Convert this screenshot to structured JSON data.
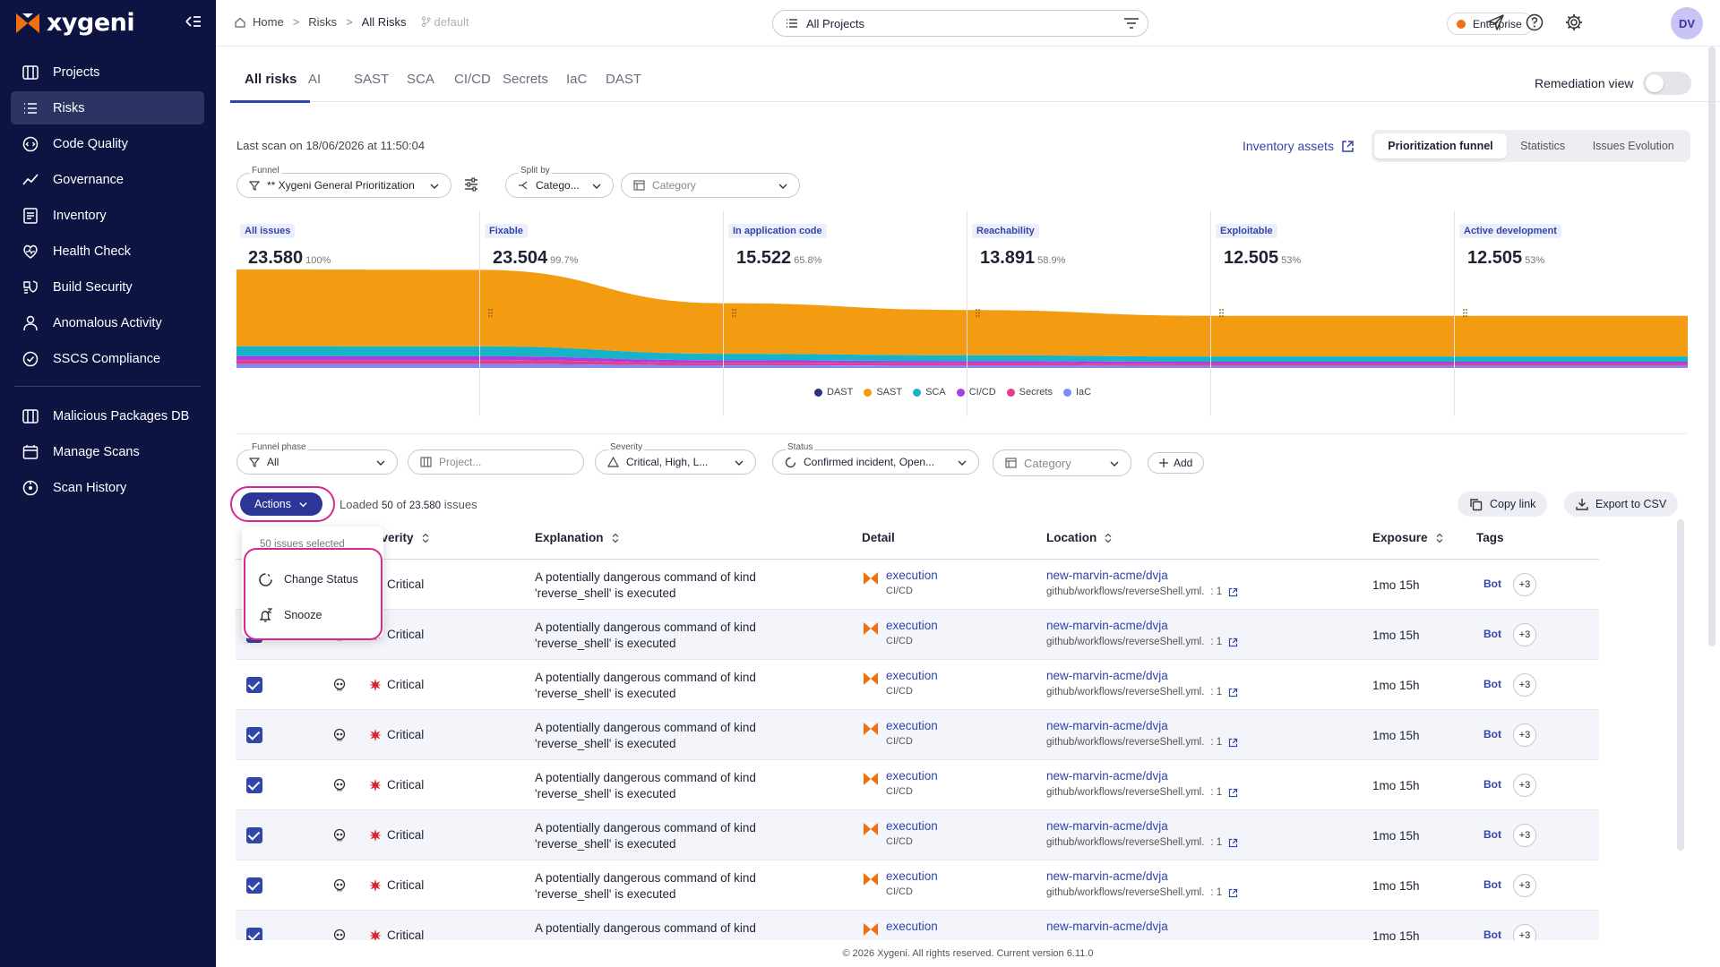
{
  "brand": {
    "name": "xygeni"
  },
  "nav": [
    {
      "label": "Projects",
      "icon": "projects-icon",
      "active": false
    },
    {
      "label": "Risks",
      "icon": "risks-icon",
      "active": true
    },
    {
      "label": "Code Quality",
      "icon": "code-quality-icon",
      "active": false
    },
    {
      "label": "Governance",
      "icon": "governance-icon",
      "active": false
    },
    {
      "label": "Inventory",
      "icon": "inventory-icon",
      "active": false
    },
    {
      "label": "Health Check",
      "icon": "health-check-icon",
      "active": false
    },
    {
      "label": "Build Security",
      "icon": "build-security-icon",
      "active": false
    },
    {
      "label": "Anomalous Activity",
      "icon": "anomalous-activity-icon",
      "active": false
    },
    {
      "label": "SSCS Compliance",
      "icon": "compliance-icon",
      "active": false
    },
    {
      "label": "Malicious Packages DB",
      "icon": "malicious-packages-icon",
      "active": false
    },
    {
      "label": "Manage Scans",
      "icon": "manage-scans-icon",
      "active": false
    },
    {
      "label": "Scan History",
      "icon": "scan-history-icon",
      "active": false
    }
  ],
  "breadcrumb": {
    "home": "Home",
    "risks": "Risks",
    "current": "All Risks",
    "branch": "default"
  },
  "project_select": {
    "value": "All Projects"
  },
  "plan": {
    "label": "Enterprise",
    "color": "#f0700f"
  },
  "user": {
    "initials": "DV"
  },
  "tabs": [
    "All risks",
    "AI",
    "SAST",
    "SCA",
    "CI/CD",
    "Secrets",
    "IaC",
    "DAST"
  ],
  "remediation_view": {
    "label": "Remediation view",
    "on": false
  },
  "last_scan": "Last scan on 18/06/2026 at 11:50:04",
  "inventory_link": "Inventory assets",
  "view_tabs": [
    "Prioritization funnel",
    "Statistics",
    "Issues Evolution"
  ],
  "funnel_filters": {
    "funnel": {
      "label": "Funnel",
      "value": "** Xygeni General Prioritization"
    },
    "split": {
      "label": "Split by",
      "value": "Catego..."
    },
    "category": {
      "placeholder": "Category"
    }
  },
  "funnel": [
    {
      "label": "All issues",
      "value": "23.580",
      "pct": "100%"
    },
    {
      "label": "Fixable",
      "value": "23.504",
      "pct": "99.7%"
    },
    {
      "label": "In application code",
      "value": "15.522",
      "pct": "65.8%"
    },
    {
      "label": "Reachability",
      "value": "13.891",
      "pct": "58.9%"
    },
    {
      "label": "Exploitable",
      "value": "12.505",
      "pct": "53%"
    },
    {
      "label": "Active development",
      "value": "12.505",
      "pct": "53%"
    }
  ],
  "legend": [
    {
      "name": "DAST",
      "color": "#2e3282"
    },
    {
      "name": "SAST",
      "color": "#f39c12"
    },
    {
      "name": "SCA",
      "color": "#17b3c9"
    },
    {
      "name": "CI/CD",
      "color": "#a43fe0"
    },
    {
      "name": "Secrets",
      "color": "#e63c8c"
    },
    {
      "name": "IaC",
      "color": "#7b8cf5"
    }
  ],
  "filters": {
    "phase": {
      "label": "Funnel phase",
      "value": "All"
    },
    "project": {
      "placeholder": "Project..."
    },
    "severity": {
      "label": "Severity",
      "value": "Critical, High, L..."
    },
    "status": {
      "label": "Status",
      "value": "Confirmed incident, Open..."
    },
    "category": {
      "placeholder": "Category"
    },
    "add": "Add"
  },
  "actions": {
    "label": "Actions"
  },
  "loaded": {
    "prefix": "Loaded",
    "count": "50",
    "of": "of",
    "total": "23.580",
    "suffix": "issues"
  },
  "copy_link": "Copy link",
  "export_csv": "Export to CSV",
  "columns": {
    "severity": "everity",
    "explanation": "Explanation",
    "detail": "Detail",
    "location": "Location",
    "exposure": "Exposure",
    "tags": "Tags"
  },
  "menu": {
    "header": "50 issues selected",
    "items": [
      "Change Status",
      "Snooze"
    ]
  },
  "rows": [
    {
      "severity": "Critical",
      "expl1": "A potentially dangerous command of kind",
      "expl2": "'reverse_shell' is executed",
      "detail": "execution",
      "detail_type": "CI/CD",
      "repo": "new-marvin-acme/dvja",
      "path": "github/workflows/reverseShell.yml.",
      "line": ": 1",
      "exposure": "1mo 15h",
      "tag": "Bot",
      "more": "+3"
    },
    {
      "severity": "Critical",
      "expl1": "A potentially dangerous command of kind",
      "expl2": "'reverse_shell' is executed",
      "detail": "execution",
      "detail_type": "CI/CD",
      "repo": "new-marvin-acme/dvja",
      "path": "github/workflows/reverseShell.yml.",
      "line": ": 1",
      "exposure": "1mo 15h",
      "tag": "Bot",
      "more": "+3"
    },
    {
      "severity": "Critical",
      "expl1": "A potentially dangerous command of kind",
      "expl2": "'reverse_shell' is executed",
      "detail": "execution",
      "detail_type": "CI/CD",
      "repo": "new-marvin-acme/dvja",
      "path": "github/workflows/reverseShell.yml.",
      "line": ": 1",
      "exposure": "1mo 15h",
      "tag": "Bot",
      "more": "+3"
    },
    {
      "severity": "Critical",
      "expl1": "A potentially dangerous command of kind",
      "expl2": "'reverse_shell' is executed",
      "detail": "execution",
      "detail_type": "CI/CD",
      "repo": "new-marvin-acme/dvja",
      "path": "github/workflows/reverseShell.yml.",
      "line": ": 1",
      "exposure": "1mo 15h",
      "tag": "Bot",
      "more": "+3"
    },
    {
      "severity": "Critical",
      "expl1": "A potentially dangerous command of kind",
      "expl2": "'reverse_shell' is executed",
      "detail": "execution",
      "detail_type": "CI/CD",
      "repo": "new-marvin-acme/dvja",
      "path": "github/workflows/reverseShell.yml.",
      "line": ": 1",
      "exposure": "1mo 15h",
      "tag": "Bot",
      "more": "+3"
    },
    {
      "severity": "Critical",
      "expl1": "A potentially dangerous command of kind",
      "expl2": "'reverse_shell' is executed",
      "detail": "execution",
      "detail_type": "CI/CD",
      "repo": "new-marvin-acme/dvja",
      "path": "github/workflows/reverseShell.yml.",
      "line": ": 1",
      "exposure": "1mo 15h",
      "tag": "Bot",
      "more": "+3"
    },
    {
      "severity": "Critical",
      "expl1": "A potentially dangerous command of kind",
      "expl2": "'reverse_shell' is executed",
      "detail": "execution",
      "detail_type": "CI/CD",
      "repo": "new-marvin-acme/dvja",
      "path": "github/workflows/reverseShell.yml.",
      "line": ": 1",
      "exposure": "1mo 15h",
      "tag": "Bot",
      "more": "+3"
    },
    {
      "severity": "Critical",
      "expl1": "A potentially dangerous command of kind",
      "expl2": "",
      "detail": "execution",
      "detail_type": "",
      "repo": "new-marvin-acme/dvja",
      "path": "",
      "line": "",
      "exposure": "1mo 15h",
      "tag": "Bot",
      "more": "+3"
    }
  ],
  "footer": "© 2026 Xygeni. All rights reserved. Current version 6.11.0"
}
